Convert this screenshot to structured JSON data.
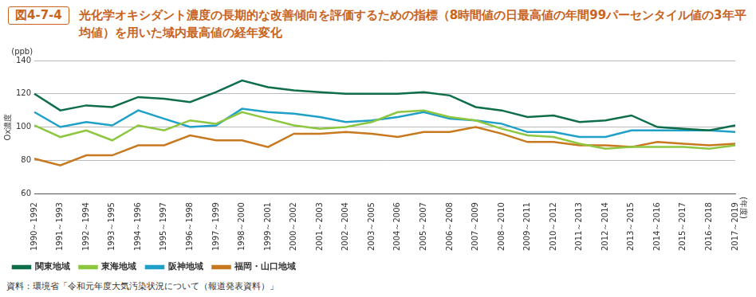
{
  "chart_data": {
    "type": "line",
    "figure_label": "図4-7-4",
    "title": "光化学オキシダント濃度の長期的な改善傾向を評価するための指標（8時間値の日最高値の年間99パーセンタイル値の3年平均値）を用いた域内最高値の経年変化",
    "y_unit": "(ppb)",
    "y_label": "Ox濃度",
    "x_unit": "(年度)",
    "source": "資料：環境省「令和元年度大気汚染状況について（報道発表資料）」",
    "categories": [
      "1990～1992",
      "1991～1993",
      "1992～1994",
      "1993～1995",
      "1994～1996",
      "1995～1997",
      "1996～1998",
      "1997～1999",
      "1998～2000",
      "1999～2001",
      "2000～2002",
      "2001～2003",
      "2002～2004",
      "2003～2005",
      "2004～2006",
      "2005～2007",
      "2006～2008",
      "2007～2009",
      "2008～2010",
      "2009～2011",
      "2010～2012",
      "2011～2013",
      "2012～2014",
      "2013～2015",
      "2014～2016",
      "2015～2017",
      "2016～2018",
      "2017～2019"
    ],
    "series": [
      {
        "name": "関東地域",
        "color": "#0f6e4a",
        "values": [
          120,
          110,
          113,
          112,
          118,
          117,
          115,
          121,
          128,
          124,
          122,
          121,
          120,
          120,
          120,
          121,
          119,
          112,
          110,
          106,
          107,
          103,
          104,
          107,
          100,
          99,
          98,
          101
        ]
      },
      {
        "name": "東海地域",
        "color": "#8dc63f",
        "values": [
          101,
          94,
          98,
          92,
          101,
          98,
          104,
          102,
          109,
          105,
          101,
          99,
          100,
          103,
          109,
          110,
          106,
          104,
          99,
          95,
          94,
          90,
          87,
          88,
          88,
          88,
          87,
          89
        ]
      },
      {
        "name": "阪神地域",
        "color": "#1ea0c8",
        "values": [
          109,
          100,
          103,
          101,
          110,
          105,
          100,
          101,
          111,
          109,
          108,
          106,
          103,
          104,
          106,
          109,
          105,
          104,
          102,
          97,
          97,
          94,
          94,
          98,
          98,
          98,
          98,
          97
        ]
      },
      {
        "name": "福岡・山口地域",
        "color": "#c8781e",
        "values": [
          81,
          77,
          83,
          83,
          89,
          89,
          95,
          92,
          92,
          88,
          96,
          96,
          97,
          96,
          94,
          97,
          97,
          100,
          96,
          91,
          91,
          89,
          89,
          88,
          91,
          90,
          89,
          90
        ]
      }
    ],
    "ylim": [
      60,
      140
    ],
    "yticks": [
      60,
      80,
      100,
      120,
      140
    ],
    "grid": true,
    "legend": "bottom-left"
  }
}
